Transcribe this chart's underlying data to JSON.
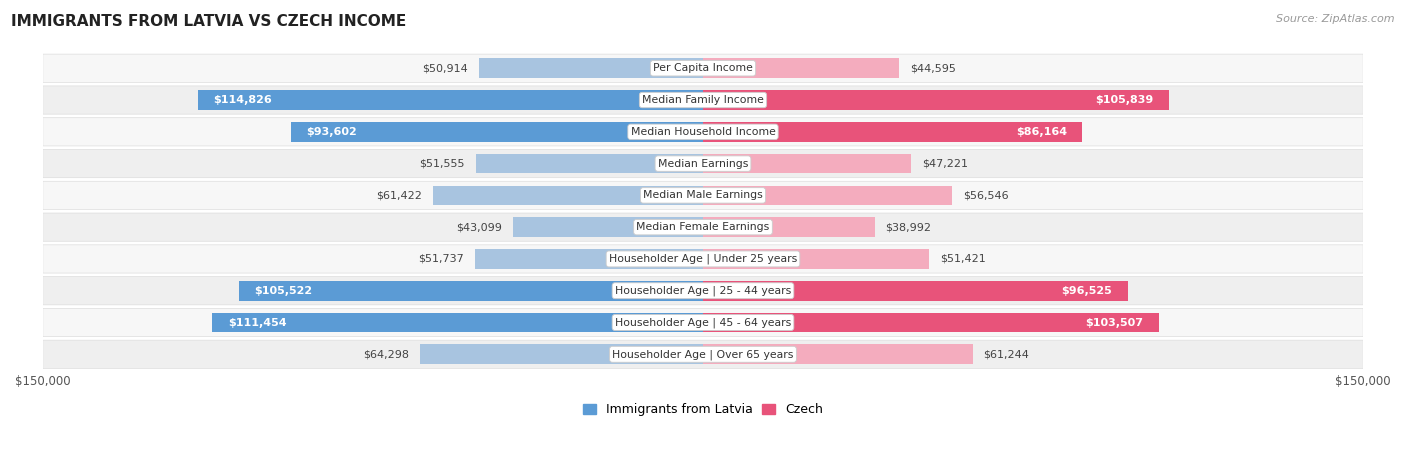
{
  "title": "IMMIGRANTS FROM LATVIA VS CZECH INCOME",
  "source": "Source: ZipAtlas.com",
  "categories": [
    "Per Capita Income",
    "Median Family Income",
    "Median Household Income",
    "Median Earnings",
    "Median Male Earnings",
    "Median Female Earnings",
    "Householder Age | Under 25 years",
    "Householder Age | 25 - 44 years",
    "Householder Age | 45 - 64 years",
    "Householder Age | Over 65 years"
  ],
  "latvia_values": [
    50914,
    114826,
    93602,
    51555,
    61422,
    43099,
    51737,
    105522,
    111454,
    64298
  ],
  "czech_values": [
    44595,
    105839,
    86164,
    47221,
    56546,
    38992,
    51421,
    96525,
    103507,
    61244
  ],
  "latvia_color_light": "#A8C4E0",
  "latvia_color_dark": "#5B9BD5",
  "czech_color_light": "#F4ACBE",
  "czech_color_dark": "#E8537A",
  "latvia_label": "Immigrants from Latvia",
  "czech_label": "Czech",
  "xlim": 150000,
  "background_color": "#FFFFFF",
  "bar_height": 0.62,
  "inside_threshold": 70000,
  "label_fontsize": 8.0,
  "cat_fontsize": 7.8,
  "title_fontsize": 11,
  "source_fontsize": 8
}
